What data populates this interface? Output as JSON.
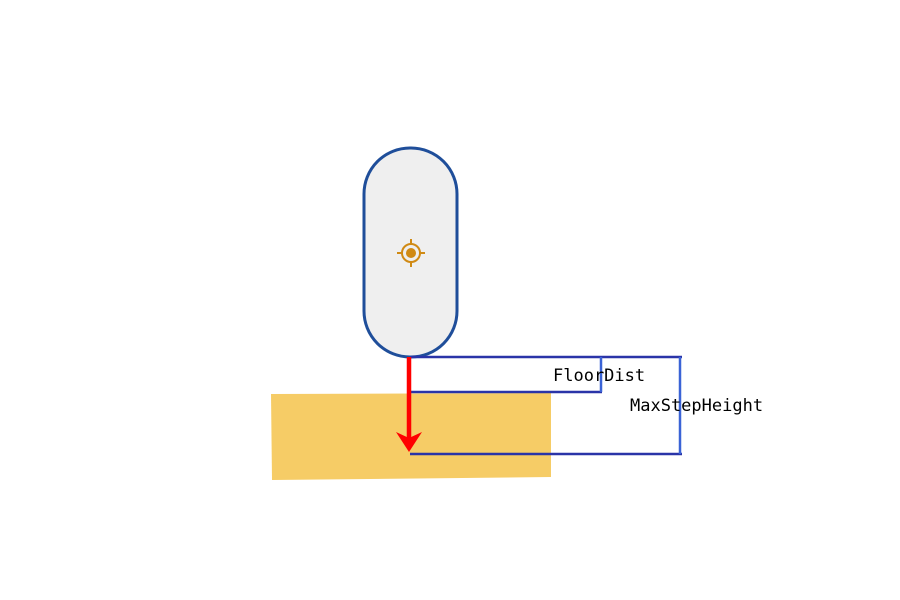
{
  "labels": {
    "floor_dist": "FloorDist",
    "max_step_height": "MaxStepHeight"
  },
  "colors": {
    "background": "#ffffff",
    "capsule_fill": "#efefef",
    "capsule_stroke": "#1f4e9a",
    "ground_fill": "#f6cc66",
    "arrow": "#ff0000",
    "dimension_lines": "#2a34a8",
    "dimension_bracket": "#3a63d6",
    "center_marker": "#d08a14"
  },
  "icons": {
    "center_marker": "crosshair-icon",
    "trace_arrow": "down-arrow-icon"
  }
}
